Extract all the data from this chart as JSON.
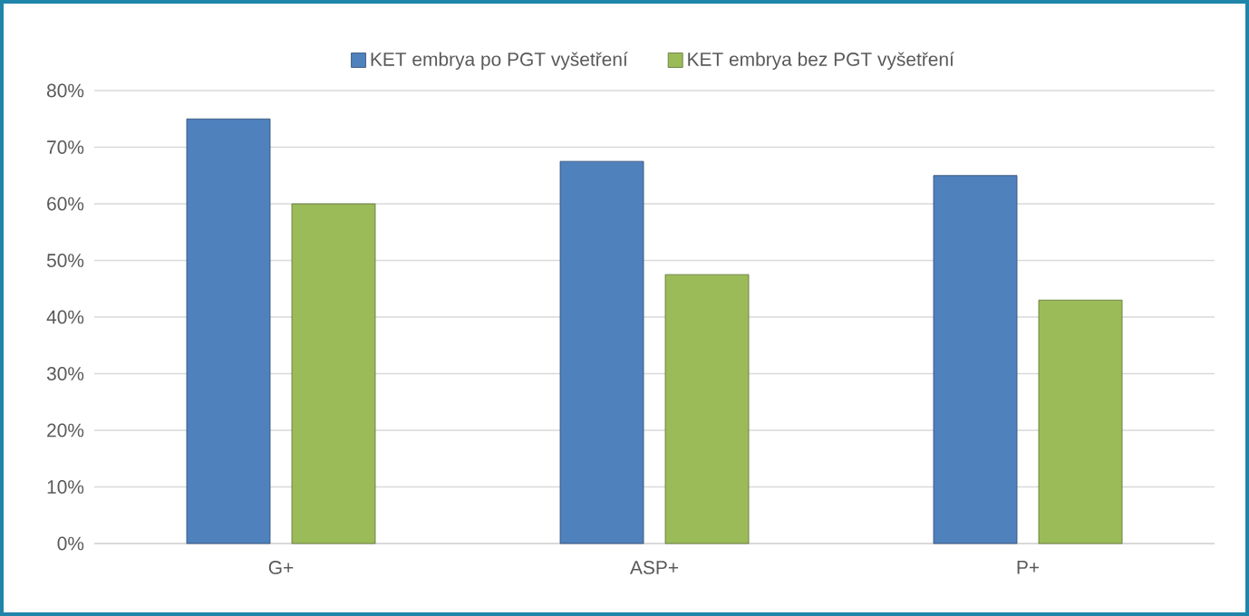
{
  "chart_data": {
    "type": "bar",
    "categories": [
      "G+",
      "ASP+",
      "P+"
    ],
    "series": [
      {
        "name": "KET embrya po PGT vyšetření",
        "color": "#4f81bd",
        "values": [
          75,
          67.5,
          65
        ]
      },
      {
        "name": "KET embrya bez PGT vyšetření",
        "color": "#9bbb59",
        "values": [
          60,
          47.5,
          43
        ]
      }
    ],
    "ylim": [
      0,
      80
    ],
    "yticks": [
      {
        "value": 0,
        "label": "0%"
      },
      {
        "value": 10,
        "label": "10%"
      },
      {
        "value": 20,
        "label": "20%"
      },
      {
        "value": 30,
        "label": "30%"
      },
      {
        "value": 40,
        "label": "40%"
      },
      {
        "value": 50,
        "label": "50%"
      },
      {
        "value": 60,
        "label": "60%"
      },
      {
        "value": 70,
        "label": "70%"
      },
      {
        "value": 80,
        "label": "80%"
      }
    ],
    "grid": "y",
    "legend": "top"
  }
}
